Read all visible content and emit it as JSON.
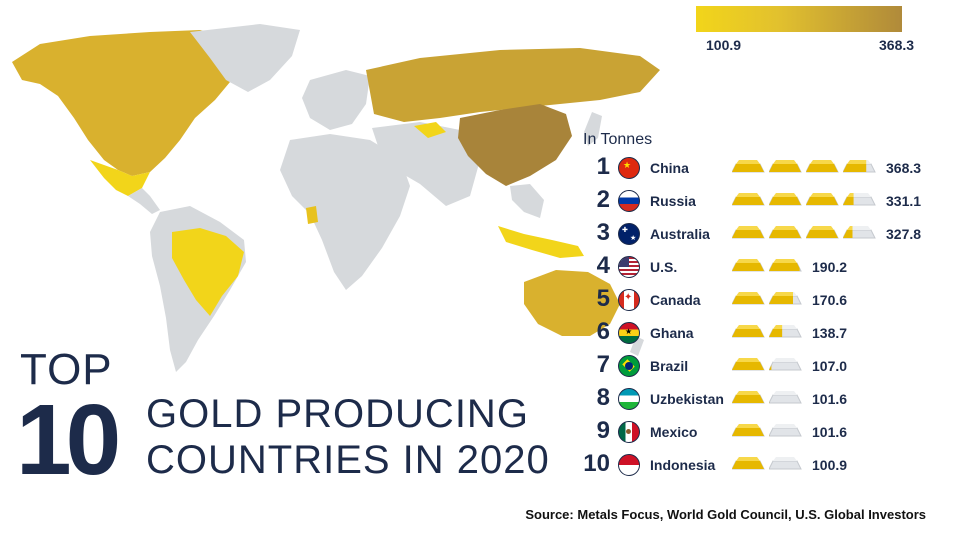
{
  "legend": {
    "min_label": "100.9",
    "max_label": "368.3",
    "min_color": "#f2d51a",
    "max_color": "#b08a3a"
  },
  "unit_label": "In Tonnes",
  "title": {
    "top": "TOP",
    "number": "10",
    "line1": "GOLD PRODUCING",
    "line2": "COUNTRIES IN 2020"
  },
  "source": {
    "label": "Source:",
    "text": "Metals Focus, World Gold Council, U.S. Global Investors"
  },
  "chart_data": {
    "type": "bar",
    "categories": [
      "China",
      "Russia",
      "Australia",
      "U.S.",
      "Canada",
      "Ghana",
      "Brazil",
      "Uzbekistan",
      "Mexico",
      "Indonesia"
    ],
    "ranks": [
      "1",
      "2",
      "3",
      "4",
      "5",
      "6",
      "7",
      "8",
      "9",
      "10"
    ],
    "values": [
      368.3,
      331.1,
      327.8,
      190.2,
      170.6,
      138.7,
      107.0,
      101.6,
      101.6,
      100.9
    ],
    "value_labels": [
      "368.3",
      "331.1",
      "327.8",
      "190.2",
      "170.6",
      "138.7",
      "107.0",
      "101.6",
      "101.6",
      "100.9"
    ],
    "units_per_bar": 100,
    "xlabel": "",
    "ylabel": ""
  }
}
